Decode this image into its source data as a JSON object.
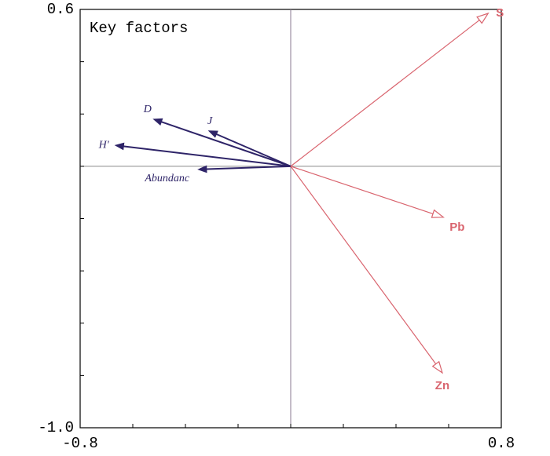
{
  "chart_data": {
    "type": "biplot",
    "annotation": "Key factors",
    "xlim": [
      -0.8,
      0.8
    ],
    "ylim": [
      -1.0,
      0.6
    ],
    "xticks": [
      -0.8,
      0.8
    ],
    "yticks": [
      0.6,
      {
        "value": -1.0,
        "label": "-1.0"
      }
    ],
    "minor_xticks": [
      -0.6,
      -0.4,
      -0.2,
      0,
      0.2,
      0.4,
      0.6
    ],
    "minor_yticks": [
      0.4,
      0.2,
      0,
      -0.2,
      -0.4,
      -0.6,
      -0.8
    ],
    "groups": [
      {
        "color": "#2e2468",
        "head": "filled",
        "font_style": "italic",
        "font_weight": "normal",
        "font_family": "Liberation Serif, serif",
        "vectors": [
          {
            "label": "D",
            "x": -0.52,
            "y": 0.18
          },
          {
            "label": "J",
            "x": -0.31,
            "y": 0.135
          },
          {
            "label": "H'",
            "x": -0.665,
            "y": 0.08
          },
          {
            "label": "Abundanc",
            "x": -0.35,
            "y": -0.012
          }
        ]
      },
      {
        "color": "#d9646e",
        "head": "open",
        "font_style": "normal",
        "font_weight": "bold",
        "font_family": "Liberation Sans, sans-serif",
        "vectors": [
          {
            "label": "S",
            "x": 0.75,
            "y": 0.585
          },
          {
            "label": "Pb",
            "x": 0.58,
            "y": -0.195
          },
          {
            "label": "Zn",
            "x": 0.576,
            "y": -0.79
          }
        ]
      }
    ]
  }
}
